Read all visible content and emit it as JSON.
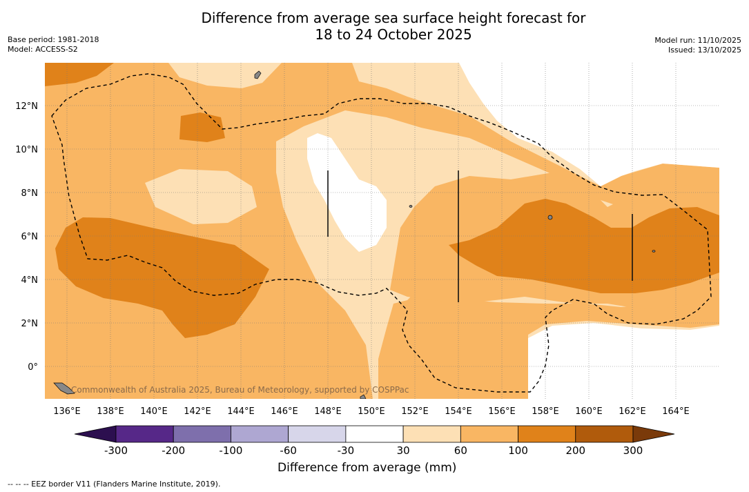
{
  "title": {
    "line1": "Difference from average sea surface height forecast for",
    "line2": "18 to 24 October 2025"
  },
  "meta_left": {
    "base_period": "Base period: 1981-2018",
    "model": "Model: ACCESS-S2"
  },
  "meta_right": {
    "model_run": "Model run: 11/10/2025",
    "issued": "Issued: 13/10/2025"
  },
  "map": {
    "lat_labels": [
      "12°N",
      "10°N",
      "8°N",
      "6°N",
      "4°N",
      "2°N",
      "0°"
    ],
    "lon_labels": [
      "136°E",
      "138°E",
      "140°E",
      "142°E",
      "144°E",
      "146°E",
      "148°E",
      "150°E",
      "152°E",
      "154°E",
      "156°E",
      "158°E",
      "160°E",
      "162°E",
      "164°E"
    ],
    "credit": "Commonwealth of Australia 2025, Bureau of Meteorology, supported by COSPPac"
  },
  "colorbar": {
    "ticks": [
      "-300",
      "-200",
      "-100",
      "-60",
      "-30",
      "30",
      "60",
      "100",
      "200",
      "300"
    ],
    "colors": [
      "#2c0f4f",
      "#562888",
      "#7e6fac",
      "#aea7d2",
      "#d7d6ea",
      "#ffffff",
      "#fde0b5",
      "#f9b663",
      "#e0821a",
      "#b05b0c",
      "#7a3a0a"
    ],
    "title": "Difference from average (mm)"
  },
  "footnote": "--  --  -- EEZ border V11 (Flanders Marine Institute, 2019)."
}
